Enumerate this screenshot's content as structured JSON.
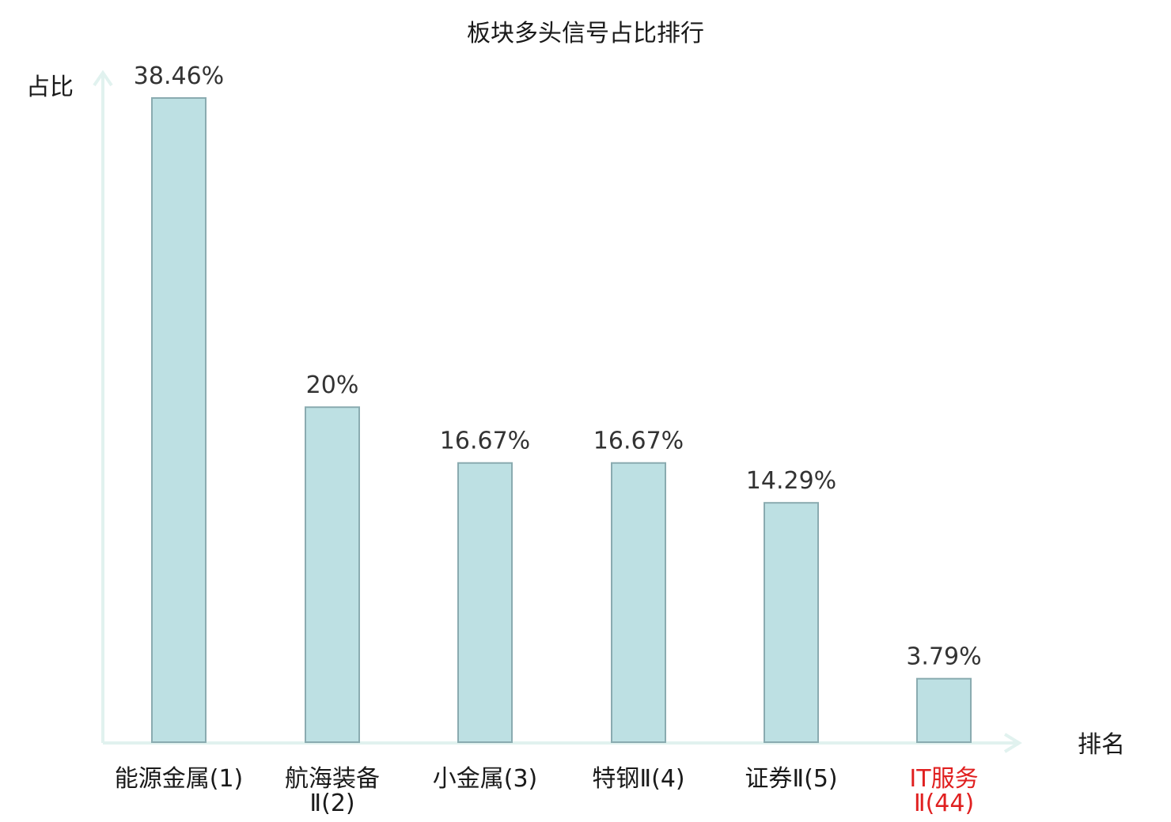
{
  "chart_data": {
    "type": "bar",
    "title": "板块多头信号占比排行",
    "ylabel": "占比",
    "xlabel": "排名",
    "categories": [
      [
        "能源金属(1)"
      ],
      [
        "航海装备",
        "Ⅱ(2)"
      ],
      [
        "小金属(3)"
      ],
      [
        "特钢Ⅱ(4)"
      ],
      [
        "证券Ⅱ(5)"
      ],
      [
        "IT服务",
        "Ⅱ(44)"
      ]
    ],
    "values": [
      38.46,
      20,
      16.67,
      16.67,
      14.29,
      3.79
    ],
    "value_labels": [
      "38.46%",
      "20%",
      "16.67%",
      "16.67%",
      "14.29%",
      "3.79%"
    ],
    "highlight_index": 5,
    "ylim": [
      0,
      40
    ],
    "grid": false,
    "colors": {
      "bar_fill": "#bde0e3",
      "bar_stroke": "#8aabb0",
      "axis": "#e1f2ef",
      "label": "#1a1a1a",
      "highlight": "#e02020"
    }
  }
}
